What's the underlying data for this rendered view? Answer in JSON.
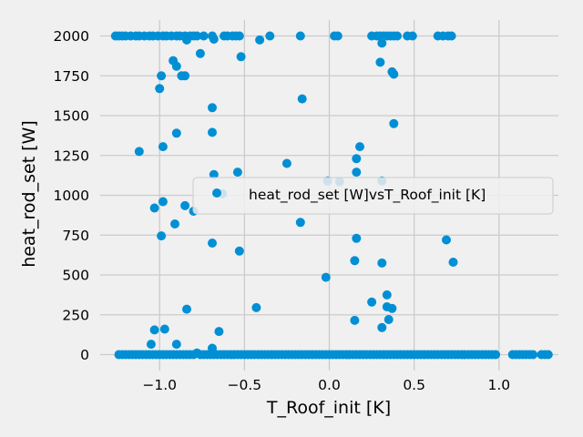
{
  "chart_data": {
    "type": "scatter",
    "xlabel": "T_Roof_init [K]",
    "ylabel": "heat_rod_set [W]",
    "xlim": [
      -1.35,
      1.35
    ],
    "ylim": [
      -100,
      2100
    ],
    "xticks": [
      -1.0,
      -0.5,
      0.0,
      0.5,
      1.0
    ],
    "xtick_labels": [
      "−1.0",
      "−0.5",
      "0.0",
      "0.5",
      "1.0"
    ],
    "yticks": [
      0,
      250,
      500,
      750,
      1000,
      1250,
      1500,
      1750,
      2000
    ],
    "ytick_labels": [
      "0",
      "250",
      "500",
      "750",
      "1000",
      "1250",
      "1500",
      "1750",
      "2000"
    ],
    "grid": true,
    "legend_position": "center-right",
    "series": [
      {
        "name": "heat_rod_set [W]vsT_Roof_init [K]",
        "color": "#008fd5",
        "points": [
          [
            -1.26,
            2000
          ],
          [
            -1.24,
            2000
          ],
          [
            -1.22,
            2000
          ],
          [
            -1.2,
            2000
          ],
          [
            -1.17,
            2000
          ],
          [
            -1.14,
            2000
          ],
          [
            -1.12,
            2000
          ],
          [
            -1.09,
            2000
          ],
          [
            -1.06,
            2000
          ],
          [
            -1.04,
            2000
          ],
          [
            -1.01,
            2000
          ],
          [
            -0.98,
            2000
          ],
          [
            -0.96,
            2000
          ],
          [
            -0.93,
            2000
          ],
          [
            -0.9,
            2000
          ],
          [
            -0.88,
            2000
          ],
          [
            -0.85,
            2000
          ],
          [
            -0.82,
            2000
          ],
          [
            -0.8,
            2000
          ],
          [
            -0.78,
            2000
          ],
          [
            -0.74,
            2000
          ],
          [
            -0.69,
            2000
          ],
          [
            -0.62,
            2000
          ],
          [
            -0.6,
            2000
          ],
          [
            -0.57,
            2000
          ],
          [
            -0.55,
            2000
          ],
          [
            -0.53,
            2000
          ],
          [
            -0.35,
            2000
          ],
          [
            -0.17,
            2000
          ],
          [
            0.03,
            2000
          ],
          [
            0.05,
            2000
          ],
          [
            0.25,
            2000
          ],
          [
            0.28,
            2000
          ],
          [
            0.3,
            2000
          ],
          [
            0.32,
            2000
          ],
          [
            0.34,
            2000
          ],
          [
            0.36,
            2000
          ],
          [
            0.38,
            2000
          ],
          [
            0.4,
            2000
          ],
          [
            0.46,
            2000
          ],
          [
            0.49,
            2000
          ],
          [
            0.64,
            2000
          ],
          [
            0.67,
            2000
          ],
          [
            0.7,
            2000
          ],
          [
            0.72,
            2000
          ],
          [
            -0.84,
            1975
          ],
          [
            -0.68,
            1980
          ],
          [
            -0.41,
            1975
          ],
          [
            0.31,
            1955
          ],
          [
            -0.76,
            1890
          ],
          [
            -0.52,
            1870
          ],
          [
            -0.92,
            1845
          ],
          [
            -0.9,
            1810
          ],
          [
            0.3,
            1835
          ],
          [
            -0.87,
            1750
          ],
          [
            -0.85,
            1750
          ],
          [
            0.37,
            1775
          ],
          [
            0.38,
            1760
          ],
          [
            -0.99,
            1750
          ],
          [
            -1.0,
            1670
          ],
          [
            -0.16,
            1605
          ],
          [
            -0.69,
            1550
          ],
          [
            0.38,
            1450
          ],
          [
            -0.9,
            1390
          ],
          [
            -0.69,
            1395
          ],
          [
            -0.98,
            1305
          ],
          [
            0.18,
            1305
          ],
          [
            -1.12,
            1275
          ],
          [
            0.16,
            1230
          ],
          [
            -0.25,
            1200
          ],
          [
            -0.68,
            1130
          ],
          [
            -0.54,
            1145
          ],
          [
            0.16,
            1145
          ],
          [
            -0.01,
            1090
          ],
          [
            0.06,
            1085
          ],
          [
            0.31,
            1090
          ],
          [
            -0.63,
            1010
          ],
          [
            -0.98,
            960
          ],
          [
            -1.03,
            920
          ],
          [
            -0.85,
            935
          ],
          [
            -0.8,
            900
          ],
          [
            -0.91,
            820
          ],
          [
            -0.17,
            830
          ],
          [
            -0.99,
            745
          ],
          [
            0.16,
            730
          ],
          [
            0.69,
            720
          ],
          [
            -0.69,
            700
          ],
          [
            -0.53,
            650
          ],
          [
            0.15,
            590
          ],
          [
            0.73,
            580
          ],
          [
            0.31,
            575
          ],
          [
            -0.02,
            485
          ],
          [
            0.34,
            375
          ],
          [
            0.25,
            330
          ],
          [
            0.34,
            300
          ],
          [
            0.37,
            290
          ],
          [
            -0.43,
            295
          ],
          [
            -0.84,
            285
          ],
          [
            0.15,
            215
          ],
          [
            0.35,
            220
          ],
          [
            0.31,
            170
          ],
          [
            -1.03,
            155
          ],
          [
            -0.97,
            160
          ],
          [
            -0.65,
            145
          ],
          [
            -1.05,
            65
          ],
          [
            -0.9,
            65
          ],
          [
            -0.69,
            40
          ],
          [
            -1.24,
            0
          ],
          [
            -1.22,
            0
          ],
          [
            -1.2,
            0
          ],
          [
            -1.18,
            0
          ],
          [
            -1.16,
            0
          ],
          [
            -1.14,
            0
          ],
          [
            -1.12,
            0
          ],
          [
            -1.1,
            0
          ],
          [
            -1.08,
            0
          ],
          [
            -1.06,
            0
          ],
          [
            -1.04,
            0
          ],
          [
            -1.02,
            0
          ],
          [
            -1.0,
            0
          ],
          [
            -0.98,
            0
          ],
          [
            -0.96,
            0
          ],
          [
            -0.94,
            0
          ],
          [
            -0.92,
            0
          ],
          [
            -0.9,
            0
          ],
          [
            -0.88,
            0
          ],
          [
            -0.86,
            0
          ],
          [
            -0.84,
            0
          ],
          [
            -0.82,
            0
          ],
          [
            -0.8,
            0
          ],
          [
            -0.78,
            10
          ],
          [
            -0.76,
            0
          ],
          [
            -0.74,
            0
          ],
          [
            -0.72,
            0
          ],
          [
            -0.7,
            0
          ],
          [
            -0.68,
            0
          ],
          [
            -0.66,
            0
          ],
          [
            -0.64,
            0
          ],
          [
            -0.62,
            0
          ],
          [
            -0.6,
            0
          ],
          [
            -0.58,
            0
          ],
          [
            -0.56,
            0
          ],
          [
            -0.54,
            0
          ],
          [
            -0.52,
            0
          ],
          [
            -0.5,
            0
          ],
          [
            -0.48,
            0
          ],
          [
            -0.46,
            0
          ],
          [
            -0.44,
            0
          ],
          [
            -0.42,
            0
          ],
          [
            -0.4,
            0
          ],
          [
            -0.38,
            0
          ],
          [
            -0.36,
            0
          ],
          [
            -0.34,
            0
          ],
          [
            -0.32,
            0
          ],
          [
            -0.3,
            0
          ],
          [
            -0.28,
            0
          ],
          [
            -0.26,
            0
          ],
          [
            -0.24,
            0
          ],
          [
            -0.22,
            0
          ],
          [
            -0.2,
            0
          ],
          [
            -0.18,
            0
          ],
          [
            -0.16,
            0
          ],
          [
            -0.14,
            0
          ],
          [
            -0.12,
            0
          ],
          [
            -0.1,
            0
          ],
          [
            -0.08,
            0
          ],
          [
            -0.06,
            0
          ],
          [
            -0.04,
            0
          ],
          [
            -0.02,
            0
          ],
          [
            0.0,
            0
          ],
          [
            0.02,
            0
          ],
          [
            0.04,
            0
          ],
          [
            0.06,
            0
          ],
          [
            0.08,
            0
          ],
          [
            0.1,
            0
          ],
          [
            0.12,
            0
          ],
          [
            0.14,
            0
          ],
          [
            0.16,
            0
          ],
          [
            0.18,
            0
          ],
          [
            0.2,
            0
          ],
          [
            0.22,
            0
          ],
          [
            0.24,
            0
          ],
          [
            0.26,
            0
          ],
          [
            0.28,
            0
          ],
          [
            0.3,
            0
          ],
          [
            0.32,
            0
          ],
          [
            0.34,
            0
          ],
          [
            0.36,
            0
          ],
          [
            0.38,
            0
          ],
          [
            0.4,
            0
          ],
          [
            0.42,
            0
          ],
          [
            0.44,
            0
          ],
          [
            0.46,
            0
          ],
          [
            0.48,
            0
          ],
          [
            0.5,
            0
          ],
          [
            0.52,
            0
          ],
          [
            0.54,
            0
          ],
          [
            0.56,
            0
          ],
          [
            0.58,
            0
          ],
          [
            0.6,
            0
          ],
          [
            0.62,
            0
          ],
          [
            0.64,
            0
          ],
          [
            0.66,
            0
          ],
          [
            0.68,
            0
          ],
          [
            0.7,
            0
          ],
          [
            0.72,
            0
          ],
          [
            0.74,
            0
          ],
          [
            0.76,
            0
          ],
          [
            0.78,
            0
          ],
          [
            0.8,
            0
          ],
          [
            0.82,
            0
          ],
          [
            0.84,
            0
          ],
          [
            0.86,
            0
          ],
          [
            0.88,
            0
          ],
          [
            0.9,
            0
          ],
          [
            0.92,
            0
          ],
          [
            0.94,
            0
          ],
          [
            0.96,
            0
          ],
          [
            0.98,
            0
          ],
          [
            1.08,
            0
          ],
          [
            1.1,
            0
          ],
          [
            1.12,
            0
          ],
          [
            1.14,
            0
          ],
          [
            1.16,
            0
          ],
          [
            1.18,
            0
          ],
          [
            1.2,
            0
          ],
          [
            1.25,
            0
          ],
          [
            1.27,
            0
          ],
          [
            1.29,
            0
          ]
        ]
      }
    ]
  }
}
